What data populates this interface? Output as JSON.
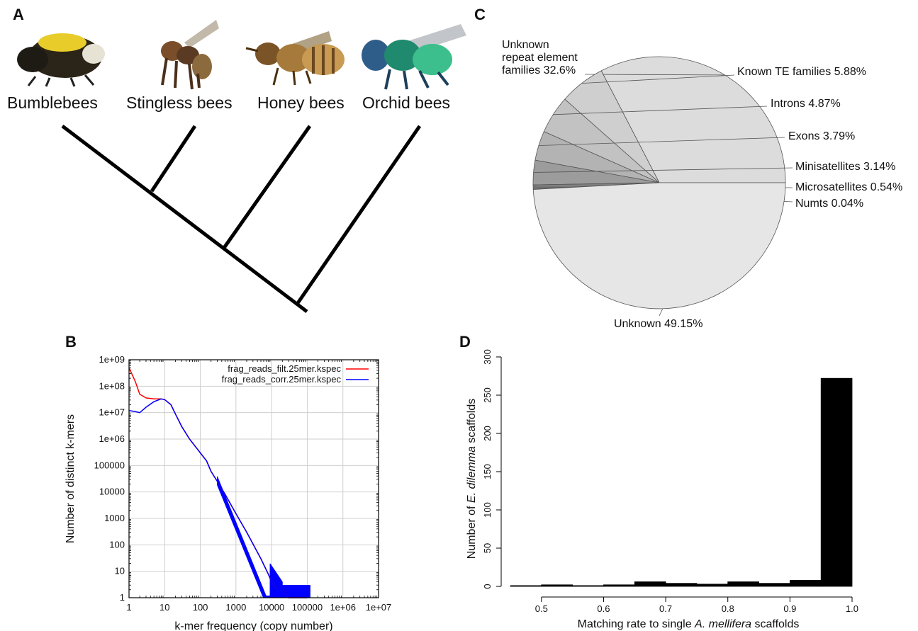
{
  "panels": {
    "a": {
      "letter": "A",
      "taxa": [
        {
          "label": "Bumblebees"
        },
        {
          "label": "Stingless bees"
        },
        {
          "label": "Honey bees"
        },
        {
          "label": "Orchid bees"
        }
      ]
    },
    "b": {
      "letter": "B"
    },
    "c": {
      "letter": "C"
    },
    "d": {
      "letter": "D"
    }
  },
  "chart_data": [
    {
      "type": "pie",
      "panel": "C",
      "slices": [
        {
          "label": "Unknown repeat element families",
          "display": [
            "Unknown",
            "repeat element",
            "families 32.6%"
          ],
          "value": 32.6,
          "color": "#dcdcdc"
        },
        {
          "label": "Known TE families",
          "display": [
            "Known TE families 5.88%"
          ],
          "value": 5.88,
          "color": "#cfcfcf"
        },
        {
          "label": "Introns",
          "display": [
            "Introns 4.87%"
          ],
          "value": 4.87,
          "color": "#c2c2c2"
        },
        {
          "label": "Exons",
          "display": [
            "Exons 3.79%"
          ],
          "value": 3.79,
          "color": "#b3b3b3"
        },
        {
          "label": "Minisatellites",
          "display": [
            "Minisatellites 3.14%"
          ],
          "value": 3.14,
          "color": "#9c9c9c"
        },
        {
          "label": "Microsatellites",
          "display": [
            "Microsatellites 0.54%"
          ],
          "value": 0.54,
          "color": "#808080"
        },
        {
          "label": "Numts",
          "display": [
            "Numts 0.04%"
          ],
          "value": 0.04,
          "color": "#606060"
        },
        {
          "label": "Unknown",
          "display": [
            "Unknown 49.15%"
          ],
          "value": 49.15,
          "color": "#e6e6e6"
        }
      ]
    },
    {
      "type": "line",
      "panel": "B",
      "xscale": "log",
      "yscale": "log",
      "xlabel": "k-mer frequency (copy number)",
      "ylabel": "Number of distinct k-mers",
      "xlim": [
        1,
        10000000
      ],
      "ylim": [
        1,
        1000000000
      ],
      "xticks": [
        "1",
        "10",
        "100",
        "1000",
        "10000",
        "100000",
        "1e+06",
        "1e+07"
      ],
      "yticks": [
        "1",
        "10",
        "100",
        "1000",
        "10000",
        "100000",
        "1e+06",
        "1e+07",
        "1e+08",
        "1e+09"
      ],
      "grid": true,
      "legend": "top-right",
      "series": [
        {
          "name": "frag_reads_filt.25mer.kspec",
          "color": "#ff0000",
          "x": [
            1,
            1.5,
            2,
            3,
            5,
            8,
            10,
            15,
            20,
            30,
            50,
            100,
            150,
            200,
            300,
            500,
            1000,
            2000,
            5000,
            8000,
            10000,
            15000,
            20000,
            30000,
            50000,
            100000
          ],
          "y": [
            500000000,
            150000000,
            50000000,
            36000000,
            33000000,
            33000000,
            31000000,
            20000000,
            9000000,
            3000000,
            1000000,
            300000,
            150000,
            60000,
            25000,
            8000,
            1500,
            300,
            30,
            8,
            4,
            2,
            2,
            1,
            1,
            1
          ]
        },
        {
          "name": "frag_reads_corr.25mer.kspec",
          "color": "#0000ff",
          "x": [
            1,
            1.5,
            2,
            3,
            5,
            8,
            10,
            15,
            20,
            30,
            50,
            100,
            150,
            200,
            300,
            500,
            1000,
            2000,
            5000,
            8000,
            10000,
            15000,
            20000,
            30000,
            50000,
            100000
          ],
          "y": [
            12000000,
            11000000,
            10000000,
            16000000,
            26000000,
            33000000,
            31000000,
            20000000,
            9000000,
            3000000,
            1000000,
            300000,
            150000,
            60000,
            25000,
            8000,
            1500,
            300,
            30,
            8,
            4,
            2,
            2,
            1,
            1,
            1
          ]
        }
      ]
    },
    {
      "type": "bar",
      "panel": "D",
      "xlabel_parts": [
        "Matching rate to single ",
        "A. mellifera",
        " scaffolds"
      ],
      "ylabel_parts": [
        "Number of ",
        "E. dilemma",
        " scaffolds"
      ],
      "xlim": [
        0.45,
        1.0
      ],
      "ylim": [
        0,
        300
      ],
      "xticks": [
        "0.5",
        "0.6",
        "0.7",
        "0.8",
        "0.9",
        "1.0"
      ],
      "yticks": [
        "0",
        "50",
        "100",
        "150",
        "200",
        "250",
        "300"
      ],
      "bins": [
        [
          0.45,
          0.5
        ],
        [
          0.5,
          0.55
        ],
        [
          0.55,
          0.6
        ],
        [
          0.6,
          0.65
        ],
        [
          0.65,
          0.7
        ],
        [
          0.7,
          0.75
        ],
        [
          0.75,
          0.8
        ],
        [
          0.8,
          0.85
        ],
        [
          0.85,
          0.9
        ],
        [
          0.9,
          0.95
        ],
        [
          0.95,
          1.0
        ]
      ],
      "values": [
        1,
        2,
        1,
        2,
        6,
        4,
        3,
        6,
        4,
        8,
        272
      ]
    }
  ]
}
